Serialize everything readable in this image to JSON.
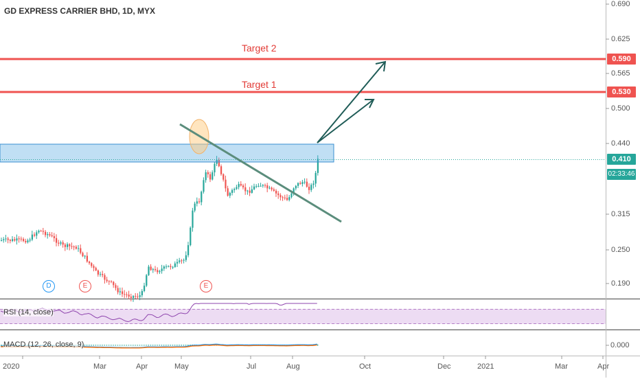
{
  "header": {
    "symbol_title": "GD EXPRESS CARRIER BHD, 1D, MYX"
  },
  "price_axis": {
    "ticks": [
      "0.690",
      "0.625",
      "0.565",
      "0.500",
      "0.440",
      "0.315",
      "0.250",
      "0.190"
    ],
    "last_price": "0.410",
    "countdown": "02:33:46"
  },
  "targets": [
    {
      "label": "Target 2",
      "price": "0.590"
    },
    {
      "label": "Target 1",
      "price": "0.530"
    }
  ],
  "time_axis": [
    "2020",
    "Mar",
    "Apr",
    "May",
    "Jul",
    "Aug",
    "Oct",
    "Dec",
    "2021",
    "Mar",
    "Apr"
  ],
  "events": [
    "D",
    "E",
    "E"
  ],
  "rsi": {
    "title": "RSI (14, close)"
  },
  "macd": {
    "title": "MACD (12, 26, close, 9)",
    "tick": "0.000"
  },
  "colors": {
    "up": "#26a69a",
    "down": "#ef5350",
    "target": "#ef5350",
    "zone": "#4aa3df",
    "trendline": "#5a8a7a",
    "arrow": "#1f5c57",
    "rsi_band": "#e7d3f0",
    "rsi_line": "#8e44ad",
    "macd_line": "#2196f3",
    "signal_line": "#ff6d00",
    "last_price_tag": "#26a69a"
  }
}
